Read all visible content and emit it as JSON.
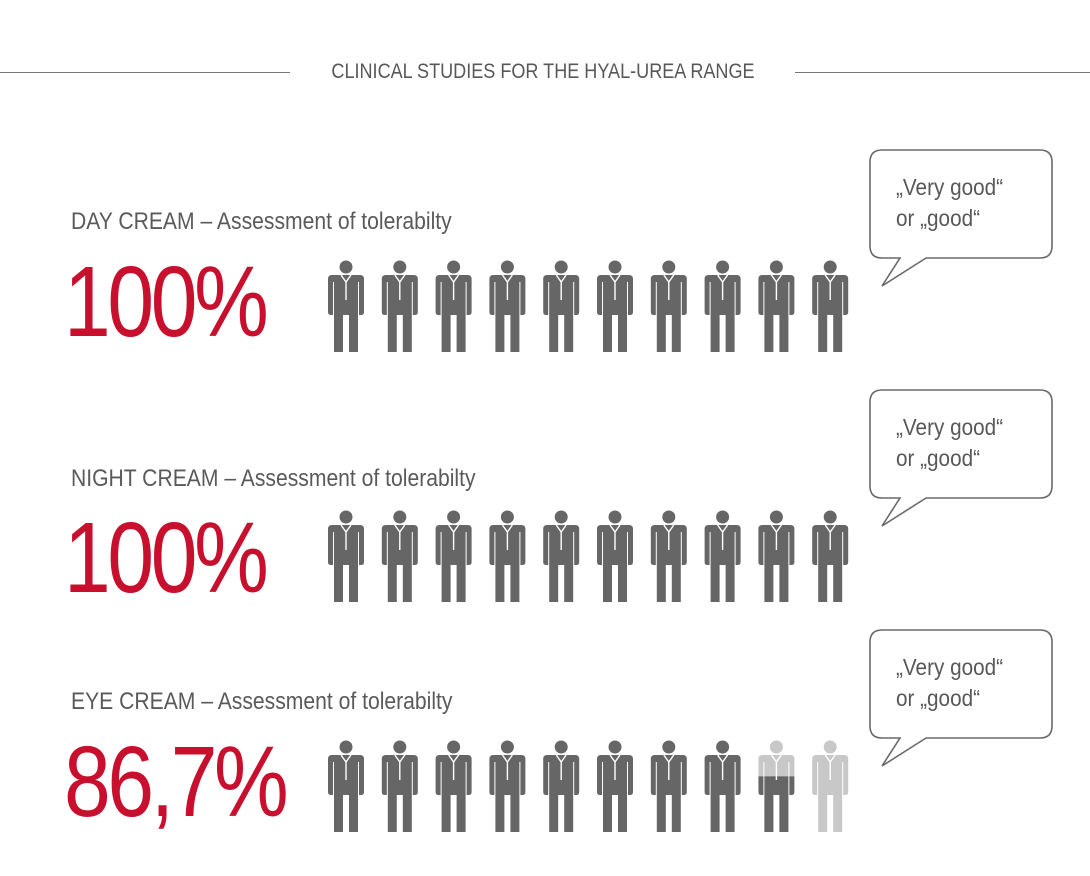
{
  "header": {
    "title": "CLINICAL STUDIES FOR THE HYAL-UREA RANGE"
  },
  "colors": {
    "accent": "#c8102e",
    "figure_filled": "#666666",
    "figure_empty": "#c8c8c8",
    "text": "#5a5a5a"
  },
  "chart_data": {
    "type": "pictograph",
    "title": "CLINICAL STUDIES FOR THE HYAL-UREA RANGE",
    "icons_per_row": 10,
    "rows": [
      {
        "label": "DAY CREAM – Assessment of tolerabilty",
        "value_label": "100%",
        "value": 100,
        "bubble_line1": "„Very good“",
        "bubble_line2": "or „good“"
      },
      {
        "label": "NIGHT CREAM – Assessment of tolerabilty",
        "value_label": "100%",
        "value": 100,
        "bubble_line1": "„Very good“",
        "bubble_line2": "or „good“"
      },
      {
        "label": "EYE CREAM – Assessment of tolerabilty",
        "value_label": "86,7%",
        "value": 86.7,
        "bubble_line1": "„Very good“",
        "bubble_line2": "or „good“"
      }
    ]
  }
}
